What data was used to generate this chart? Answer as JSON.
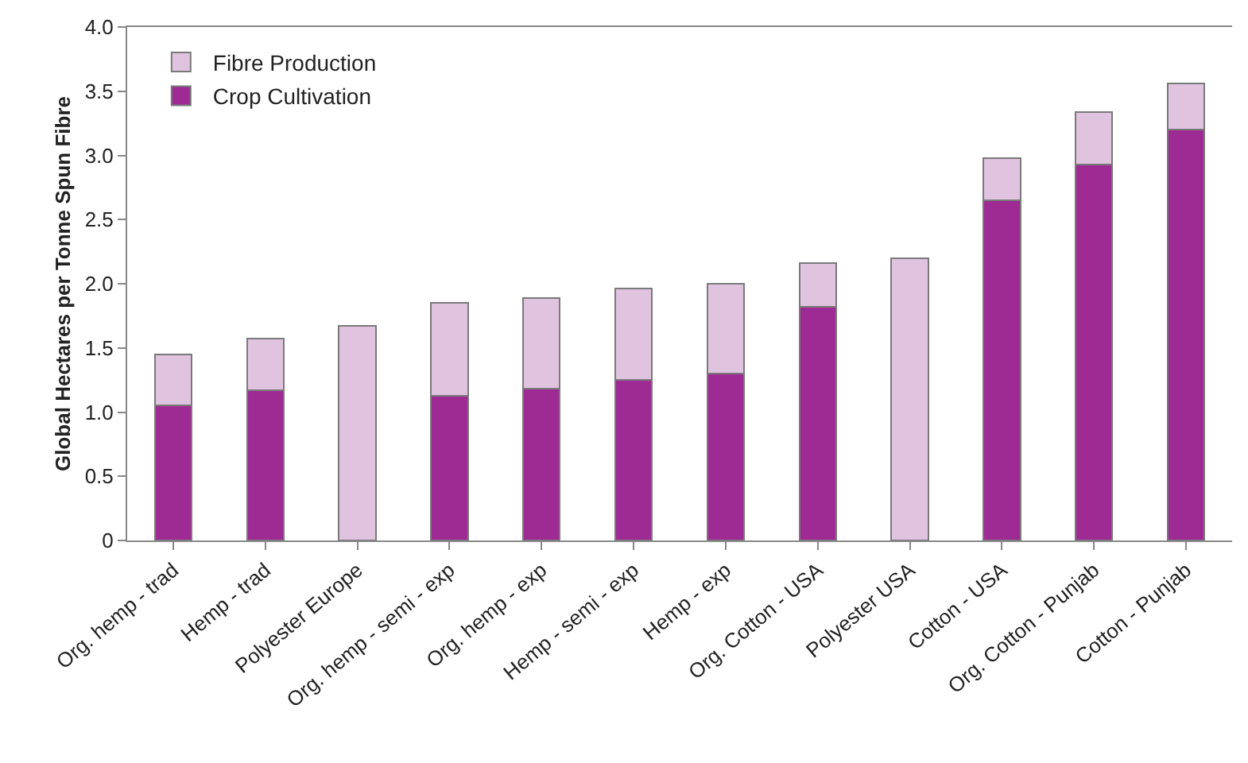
{
  "chart_data": {
    "type": "bar",
    "stacked": true,
    "ylabel": "Global Hectares per Tonne Spun Fibre",
    "categories": [
      "Org. hemp - trad",
      "Hemp - trad",
      "Polyester Europe",
      "Org. hemp - semi - exp",
      "Org. hemp - exp",
      "Hemp - semi - exp",
      "Hemp - exp",
      "Org. Cotton - USA",
      "Polyester USA",
      "Cotton - USA",
      "Org. Cotton - Punjab",
      "Cotton - Punjab"
    ],
    "series": [
      {
        "name": "Crop Cultivation",
        "color": "#9e2a94",
        "values": [
          1.05,
          1.17,
          null,
          1.13,
          1.18,
          1.25,
          1.3,
          1.82,
          null,
          2.65,
          2.93,
          3.2
        ]
      },
      {
        "name": "Fibre Production",
        "color": "#e0c3df",
        "values": [
          0.4,
          0.4,
          1.67,
          0.72,
          0.71,
          0.71,
          0.7,
          0.34,
          2.2,
          0.33,
          0.41,
          0.36
        ]
      }
    ],
    "ylim": [
      0,
      4
    ],
    "yticks": [
      {
        "value": 0,
        "label": "0"
      },
      {
        "value": 0.5,
        "label": "0.5"
      },
      {
        "value": 1,
        "label": "1.0"
      },
      {
        "value": 1.5,
        "label": "1.5"
      },
      {
        "value": 2,
        "label": "2.0"
      },
      {
        "value": 2.5,
        "label": "2.5"
      },
      {
        "value": 3,
        "label": "3.0"
      },
      {
        "value": 3.5,
        "label": "3.5"
      },
      {
        "value": 4,
        "label": "4.0"
      }
    ],
    "grid": false,
    "legend": "top left"
  }
}
